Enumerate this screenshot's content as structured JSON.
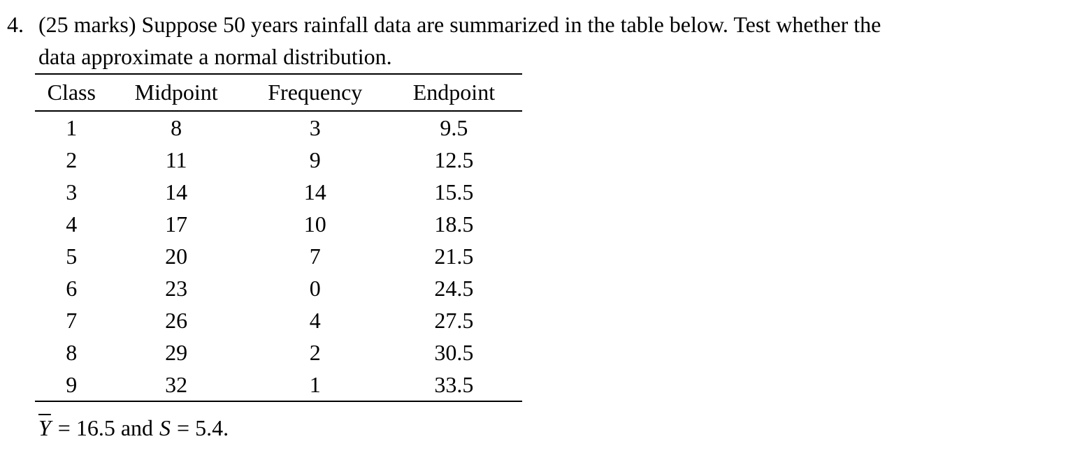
{
  "problem": {
    "number": "4.",
    "line1": "(25 marks) Suppose 50 years rainfall data are summarized in the table below. Test whether the",
    "line2": "data approximate a normal distribution."
  },
  "table": {
    "headers": [
      "Class",
      "Midpoint",
      "Frequency",
      "Endpoint"
    ],
    "rows": [
      [
        "1",
        "8",
        "3",
        "9.5"
      ],
      [
        "2",
        "11",
        "9",
        "12.5"
      ],
      [
        "3",
        "14",
        "14",
        "15.5"
      ],
      [
        "4",
        "17",
        "10",
        "18.5"
      ],
      [
        "5",
        "20",
        "7",
        "21.5"
      ],
      [
        "6",
        "23",
        "0",
        "24.5"
      ],
      [
        "7",
        "26",
        "4",
        "27.5"
      ],
      [
        "8",
        "29",
        "2",
        "30.5"
      ],
      [
        "9",
        "32",
        "1",
        "33.5"
      ]
    ]
  },
  "stats": {
    "mean_var": "Y",
    "mean_eq": "= 16.5 and",
    "sd_var": "S",
    "sd_eq": "= 5.4."
  }
}
